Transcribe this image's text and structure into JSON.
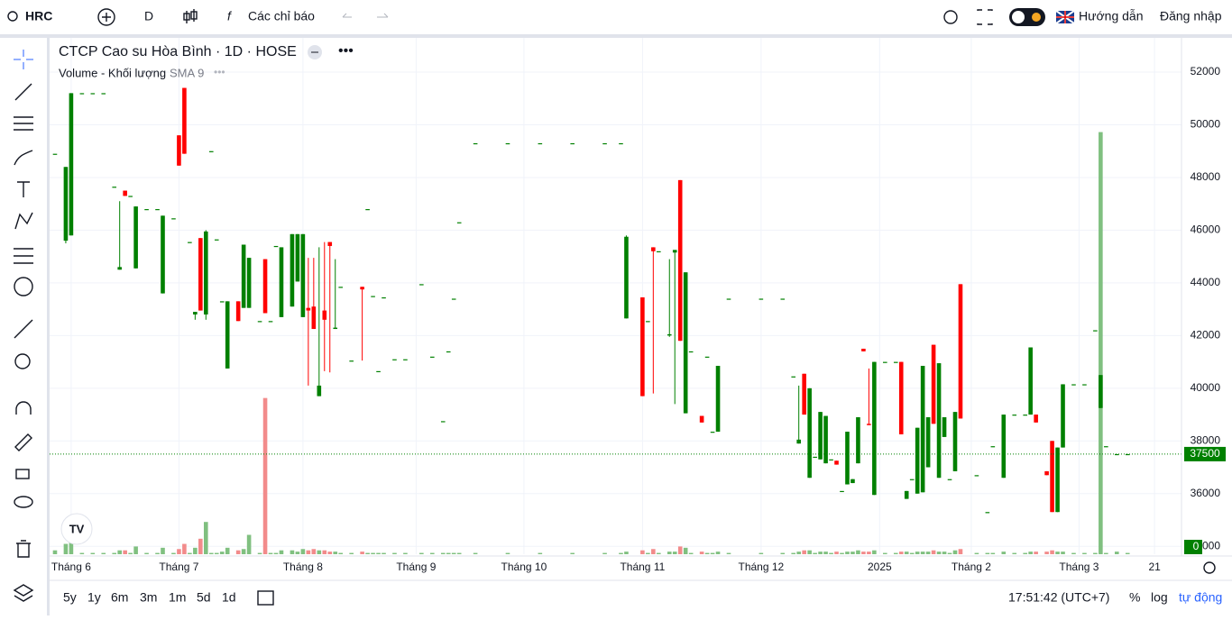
{
  "ui": {
    "symbol": "HRC",
    "interval": "D",
    "indicators": "Các chỉ báo",
    "guide": "Hướng dẫn",
    "login": "Đăng nhập",
    "volume_label": "Volume - Khối lượng",
    "sma": "SMA 9",
    "ranges": [
      "5y",
      "1y",
      "6m",
      "3m",
      "1m",
      "5d",
      "1d"
    ],
    "time": "17:51:42 (UTC+7)",
    "percent": "%",
    "log": "log",
    "auto": "tự động"
  },
  "chart_data": {
    "type": "candlestick",
    "title": "CTCP Cao su Hòa Bình · 1D · HOSE",
    "up_color": "#008000",
    "down_color": "#ff0000",
    "volume_up_color": "#80c080",
    "volume_down_color": "#f28b8b",
    "grid": true,
    "xlim": [
      -1,
      209
    ],
    "ylim": [
      33700,
      53300
    ],
    "volume_ylim": [
      0,
      400000
    ],
    "yticks": [
      34000,
      36000,
      38000,
      40000,
      42000,
      44000,
      46000,
      48000,
      50000,
      52000
    ],
    "xticks": [
      {
        "value": 3,
        "label": "Tháng 6"
      },
      {
        "value": 23,
        "label": "Tháng 7"
      },
      {
        "value": 46,
        "label": "Tháng 8"
      },
      {
        "value": 67,
        "label": "Tháng 9"
      },
      {
        "value": 87,
        "label": "Tháng 10"
      },
      {
        "value": 109,
        "label": "Tháng 11"
      },
      {
        "value": 131,
        "label": "Tháng 12"
      },
      {
        "value": 153,
        "label": "2025"
      },
      {
        "value": 170,
        "label": "Tháng 2"
      },
      {
        "value": 190,
        "label": "Tháng 3"
      },
      {
        "value": 204,
        "label": "21"
      }
    ],
    "last_price": 37500,
    "candles": {
      "x": [
        0,
        2,
        3,
        5,
        7,
        9,
        11,
        12,
        13,
        14,
        15,
        17,
        19,
        20,
        22,
        23,
        24,
        25,
        26,
        27,
        28,
        29,
        30,
        31,
        32,
        34,
        35,
        36,
        38,
        39,
        40,
        41,
        42,
        44,
        45,
        46,
        47,
        48,
        49,
        50,
        51,
        52,
        53,
        55,
        57,
        58,
        59,
        60,
        61,
        63,
        65,
        68,
        70,
        72,
        73,
        74,
        75,
        78,
        84,
        90,
        96,
        102,
        105,
        106,
        109,
        110,
        111,
        112,
        114,
        115,
        116,
        117,
        118,
        120,
        121,
        122,
        123,
        125,
        131,
        135,
        137,
        138,
        139,
        140,
        141,
        142,
        143,
        144,
        145,
        146,
        147,
        148,
        149,
        150,
        151,
        152,
        154,
        156,
        157,
        158,
        159,
        160,
        161,
        162,
        163,
        164,
        165,
        166,
        167,
        168,
        171,
        173,
        174,
        176,
        178,
        180,
        181,
        182,
        184,
        185,
        186,
        187,
        189,
        191,
        193,
        194,
        195,
        197,
        199
      ],
      "open": [
        48900,
        45600,
        45800,
        51200,
        51200,
        51200,
        47650,
        44500,
        47500,
        47300,
        44550,
        46800,
        46800,
        43600,
        46450,
        49600,
        51400,
        45550,
        42800,
        45700,
        42800,
        49000,
        45650,
        43300,
        40750,
        43300,
        43050,
        43050,
        42550,
        44900,
        42550,
        45400,
        42700,
        43100,
        44050,
        42700,
        43050,
        43100,
        39700,
        42950,
        45550,
        42250,
        43850,
        41050,
        43850,
        46800,
        43500,
        40650,
        43450,
        41100,
        41100,
        43950,
        41200,
        38750,
        41400,
        43400,
        46300,
        49300,
        49300,
        49300,
        49300,
        49300,
        49300,
        42650,
        43450,
        42550,
        45350,
        45200,
        42000,
        45150,
        47900,
        39050,
        41400,
        38950,
        41200,
        38350,
        38350,
        43400,
        43400,
        43400,
        40450,
        37900,
        40550,
        36600,
        37400,
        37300,
        37150,
        37300,
        37250,
        36100,
        36350,
        36400,
        37150,
        41500,
        38650,
        35950,
        41000,
        41000,
        41000,
        35800,
        36550,
        36000,
        36050,
        37000,
        41650,
        36600,
        38150,
        36550,
        36850,
        43950,
        36700,
        35300,
        37800,
        36600,
        39000,
        39000,
        39000,
        39000,
        36850,
        38000,
        35300,
        37750,
        40150,
        40150,
        42200,
        39250,
        37800,
        37500,
        37500
      ],
      "high": [
        48900,
        48400,
        51200,
        51200,
        51200,
        51200,
        47650,
        47100,
        47500,
        47300,
        46900,
        46800,
        46800,
        46550,
        46450,
        49600,
        51400,
        45550,
        42900,
        45700,
        46000,
        49000,
        45650,
        43300,
        43300,
        43300,
        45450,
        44950,
        42550,
        44900,
        42550,
        45400,
        45350,
        45850,
        45850,
        45850,
        44950,
        44950,
        45350,
        45550,
        45550,
        44900,
        43850,
        41050,
        43850,
        46800,
        43500,
        40650,
        43450,
        41100,
        41100,
        43950,
        41200,
        38750,
        41400,
        43400,
        46300,
        49300,
        49300,
        49300,
        49300,
        49300,
        49300,
        45800,
        43450,
        42550,
        45350,
        45200,
        44900,
        45250,
        47900,
        44400,
        41400,
        38950,
        41200,
        38350,
        40850,
        43400,
        43400,
        43400,
        40450,
        40100,
        40550,
        40000,
        37400,
        39100,
        38950,
        37300,
        37250,
        36100,
        38350,
        36550,
        38900,
        41500,
        40750,
        41000,
        41000,
        41000,
        41000,
        36100,
        36550,
        38500,
        40850,
        38900,
        41650,
        40950,
        38900,
        36550,
        39100,
        43950,
        36700,
        35300,
        37800,
        39000,
        39000,
        39000,
        41550,
        39000,
        36850,
        38000,
        37750,
        40150,
        40150,
        40150,
        42200,
        40500,
        37800,
        37500,
        37500
      ],
      "low": [
        48900,
        45500,
        45800,
        51200,
        51200,
        51200,
        47650,
        44500,
        47300,
        47300,
        44550,
        46800,
        46800,
        43600,
        46450,
        48450,
        48900,
        45550,
        42600,
        42950,
        42600,
        49000,
        45650,
        43300,
        40750,
        42550,
        43050,
        43050,
        42550,
        42850,
        42550,
        45400,
        42700,
        43100,
        44050,
        42700,
        40100,
        42250,
        39700,
        40650,
        40600,
        42250,
        43850,
        41050,
        41050,
        46800,
        43500,
        40650,
        43450,
        41100,
        41100,
        43950,
        41200,
        38750,
        41400,
        43400,
        46300,
        49300,
        49300,
        49300,
        49300,
        49300,
        49300,
        42650,
        39700,
        42550,
        39800,
        45200,
        41950,
        39400,
        41800,
        39050,
        41400,
        38700,
        41200,
        38350,
        38350,
        43400,
        43400,
        43400,
        40450,
        37900,
        39000,
        36600,
        37400,
        37300,
        37150,
        37300,
        37100,
        36100,
        36350,
        36400,
        37150,
        41400,
        38600,
        35950,
        41000,
        41000,
        38250,
        35800,
        36550,
        36000,
        36050,
        37000,
        38650,
        36600,
        38150,
        36550,
        36850,
        38850,
        36700,
        35300,
        37800,
        36600,
        39000,
        39000,
        39000,
        38700,
        36700,
        35300,
        35300,
        37750,
        40150,
        40150,
        42200,
        39250,
        37800,
        37500,
        37500
      ],
      "close": [
        48900,
        48400,
        51200,
        51200,
        51200,
        51200,
        47650,
        44600,
        47300,
        47300,
        46900,
        46800,
        46800,
        46550,
        46450,
        48450,
        48900,
        45550,
        42900,
        42950,
        45950,
        49000,
        45650,
        43300,
        43300,
        42550,
        45450,
        44950,
        42550,
        42850,
        42550,
        45400,
        45350,
        45850,
        45850,
        45850,
        42950,
        42250,
        40100,
        42600,
        45400,
        42300,
        43850,
        41050,
        43750,
        46800,
        43500,
        40650,
        43450,
        41100,
        41100,
        43950,
        41200,
        38750,
        41400,
        43400,
        46300,
        49300,
        49300,
        49300,
        49300,
        49300,
        49300,
        45750,
        39700,
        42550,
        45200,
        45200,
        42050,
        45250,
        41800,
        44400,
        41400,
        38700,
        41200,
        38350,
        40850,
        43400,
        43400,
        43400,
        40450,
        38050,
        39000,
        40000,
        37400,
        39100,
        38950,
        37300,
        37100,
        36100,
        38350,
        36550,
        38900,
        41400,
        38600,
        41000,
        41000,
        41000,
        38250,
        36100,
        36550,
        38500,
        40850,
        38900,
        38650,
        40950,
        38900,
        36550,
        39100,
        38850,
        36700,
        35300,
        37800,
        39000,
        39000,
        39000,
        41550,
        38700,
        36700,
        35300,
        37750,
        40150,
        40150,
        40150,
        42200,
        40500,
        37800,
        37500,
        37500
      ],
      "volume": [
        3000,
        8000,
        20000,
        1000,
        1000,
        1000,
        1000,
        3000,
        3000,
        1000,
        6000,
        1000,
        1000,
        5000,
        1000,
        4000,
        8000,
        1000,
        5000,
        12000,
        25000,
        1000,
        1000,
        2000,
        5000,
        3000,
        4000,
        15000,
        1000,
        121000,
        1000,
        1000,
        3000,
        3000,
        2000,
        4000,
        3000,
        4000,
        3000,
        3000,
        2000,
        2000,
        1000,
        1000,
        2000,
        1000,
        1000,
        1000,
        1000,
        1000,
        1000,
        1000,
        1000,
        1000,
        1000,
        1000,
        1000,
        1000,
        1000,
        1000,
        1000,
        1000,
        1000,
        2000,
        3000,
        1000,
        4000,
        1000,
        2000,
        2000,
        6000,
        5000,
        1000,
        2000,
        1000,
        1000,
        2000,
        1000,
        1000,
        1000,
        1000,
        2000,
        3000,
        3000,
        1000,
        2000,
        2000,
        1000,
        2000,
        1000,
        2000,
        2000,
        3000,
        2000,
        2000,
        3000,
        1000,
        1000,
        2000,
        2000,
        1000,
        2000,
        2000,
        2000,
        3000,
        2000,
        2000,
        1000,
        3000,
        4000,
        1000,
        1000,
        1000,
        2000,
        1000,
        1000,
        2000,
        2000,
        2000,
        3000,
        2000,
        2000,
        1000,
        1000,
        1000,
        327000,
        1000,
        2000,
        1000
      ]
    }
  }
}
